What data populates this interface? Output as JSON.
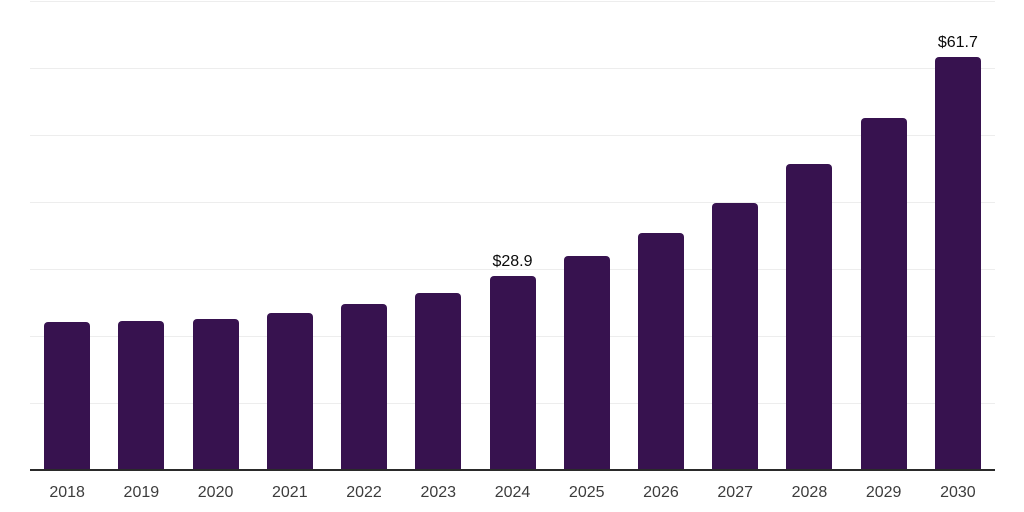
{
  "chart": {
    "background_color": "#ffffff",
    "bar_color": "#37124f",
    "gridline_color": "#ededed",
    "axis_line_color": "#2a2a2a",
    "tick_label_color": "#3c3c3c",
    "data_label_color": "#0a0a0a"
  },
  "chart_data": {
    "type": "bar",
    "title": "",
    "xlabel": "",
    "ylabel": "",
    "categories": [
      "2018",
      "2019",
      "2020",
      "2021",
      "2022",
      "2023",
      "2024",
      "2025",
      "2026",
      "2027",
      "2028",
      "2029",
      "2030"
    ],
    "values": [
      22.1,
      22.2,
      22.5,
      23.5,
      24.8,
      26.4,
      28.9,
      31.9,
      35.3,
      39.8,
      45.6,
      52.5,
      61.7
    ],
    "data_labels": [
      "",
      "",
      "",
      "",
      "",
      "",
      "$28.9",
      "",
      "",
      "",
      "",
      "",
      "$61.7"
    ],
    "ylim": [
      0,
      70
    ],
    "grid_step": 10,
    "grid": "horizontal",
    "legend": "none",
    "y_axis_tick_labels_visible": false
  }
}
